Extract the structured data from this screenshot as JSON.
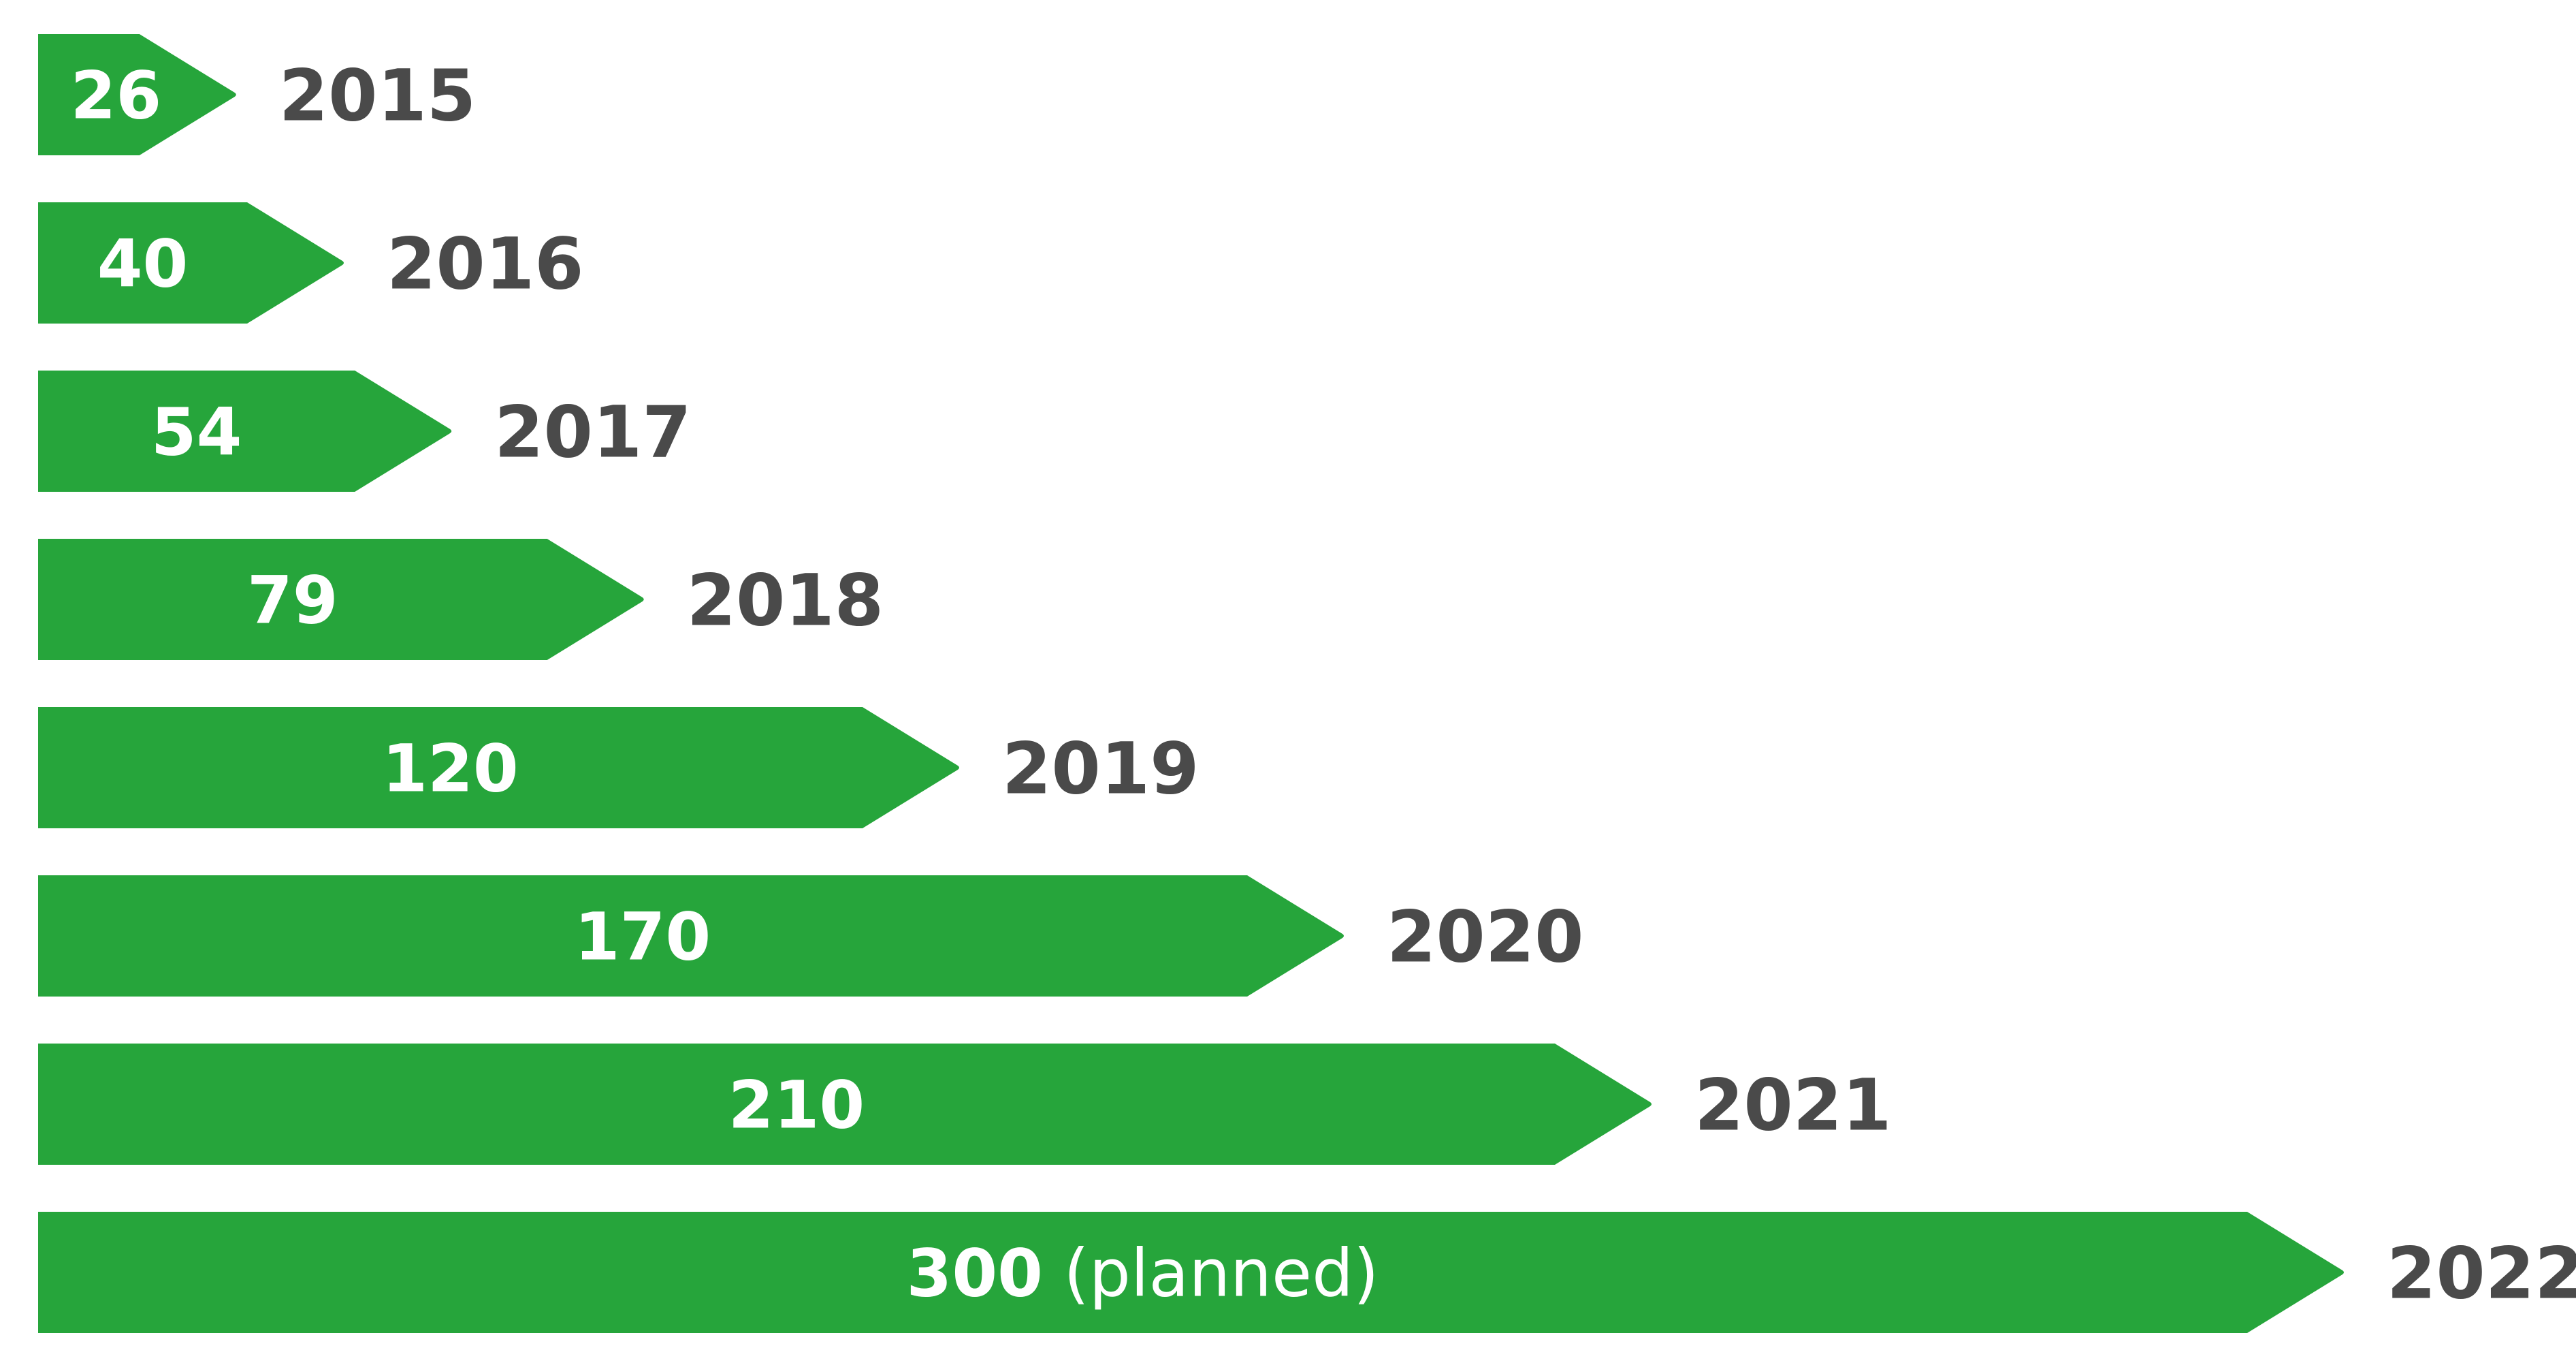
{
  "chart_data": {
    "type": "bar",
    "orientation": "horizontal",
    "categories": [
      "2015",
      "2016",
      "2017",
      "2018",
      "2019",
      "2020",
      "2021",
      "2022"
    ],
    "values": [
      26,
      40,
      54,
      79,
      120,
      170,
      210,
      300
    ],
    "value_labels": [
      "26",
      "40",
      "54",
      "79",
      "120",
      "170",
      "210",
      "300"
    ],
    "value_notes": [
      "",
      "",
      "",
      "",
      "",
      "",
      "",
      "(planned)"
    ],
    "title": "",
    "xlabel": "",
    "ylabel": "",
    "grid": false,
    "legend": "none",
    "colors": {
      "bar": "#26a53b",
      "bar_text": "#ffffff",
      "year_text": "#4a4a4a"
    }
  }
}
